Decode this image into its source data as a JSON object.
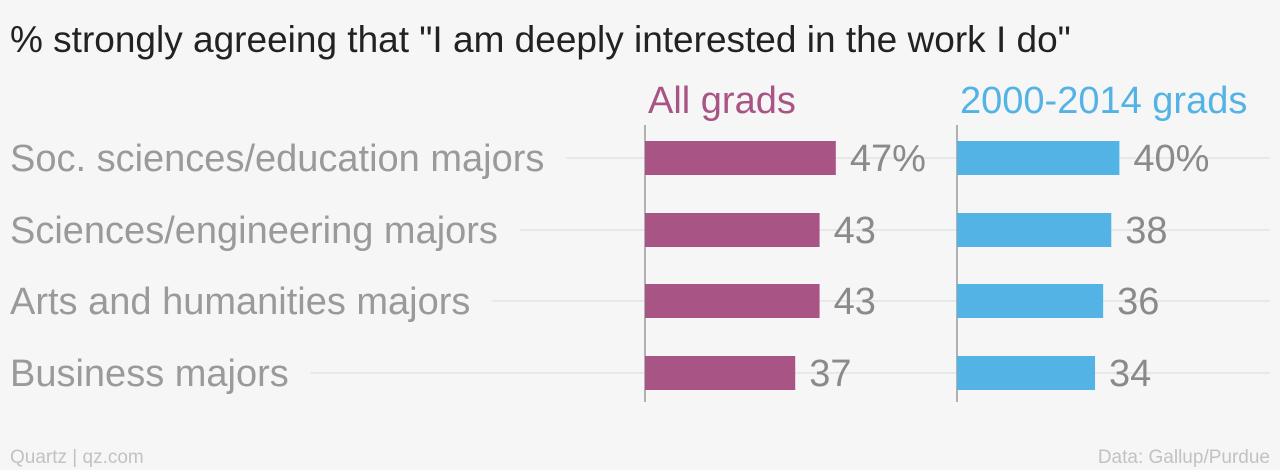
{
  "title": "% strongly agreeing that \"I am deeply interested in the work I do\"",
  "footer": {
    "source_left": "Quartz | qz.com",
    "source_right": "Data: Gallup/Purdue"
  },
  "chart_data": {
    "type": "bar",
    "orientation": "horizontal",
    "title": "% strongly agreeing that \"I am deeply interested in the work I do\"",
    "categories": [
      "Soc. sciences/education majors",
      "Sciences/engineering majors",
      "Arts and humanities majors",
      "Business majors"
    ],
    "series": [
      {
        "name": "All grads",
        "color": "#a85585",
        "values": [
          47,
          43,
          43,
          37
        ],
        "labels": [
          "47%",
          "43",
          "43",
          "37"
        ]
      },
      {
        "name": "2000-2014 grads",
        "color": "#53b3e4",
        "values": [
          40,
          38,
          36,
          34
        ],
        "labels": [
          "40%",
          "38",
          "36",
          "34"
        ]
      }
    ],
    "xlim": [
      0,
      100
    ],
    "grid": true,
    "layout": "small-multiples side by side"
  }
}
